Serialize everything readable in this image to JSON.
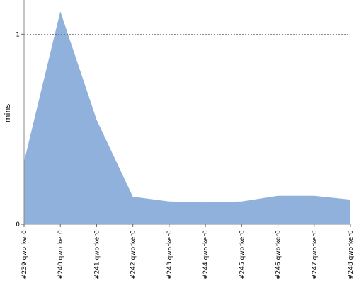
{
  "chart_data": {
    "type": "area",
    "y_label": "mins",
    "categories": [
      "#239 qworker0",
      "#240 qworker0",
      "#241 qworker0",
      "#242 qworker0",
      "#243 qworker0",
      "#244 qworker0",
      "#245 qworker0",
      "#246 qworker0",
      "#247 qworker0",
      "#248 qworker0"
    ],
    "values": [
      0.33,
      1.12,
      0.55,
      0.145,
      0.12,
      0.115,
      0.12,
      0.15,
      0.15,
      0.13
    ],
    "color": "#8fb1dc",
    "ylim": [
      0,
      1.18
    ],
    "yticks": [
      0,
      1
    ],
    "grid": true
  }
}
